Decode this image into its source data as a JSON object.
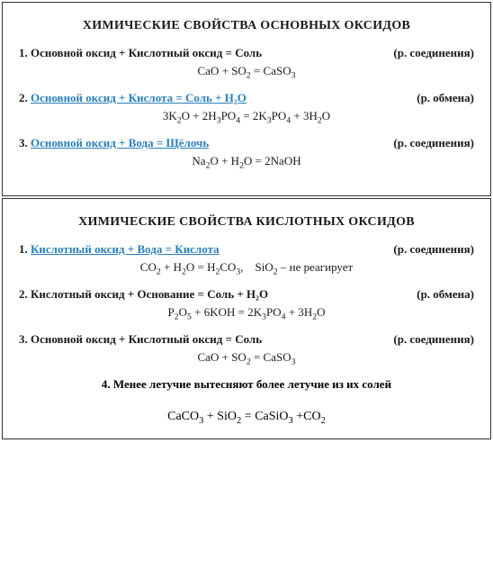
{
  "panel1": {
    "title": "ХИМИЧЕСКИЕ СВОЙСТВА ОСНОВНЫХ ОКСИДОВ",
    "items": [
      {
        "num": "1.",
        "text": "Основной оксид + Кислотный оксид = Соль",
        "link": false,
        "paren": "(р. соединения)",
        "eq_html": "CaO + SO<sub>2</sub> = CaSO<sub>3</sub>"
      },
      {
        "num": "2.",
        "text": "Основной оксид + Кислота = Соль + H₂O",
        "link": true,
        "paren": "(р. обмена)",
        "eq_html": "3K<sub>2</sub>O + 2H<sub>3</sub>PO<sub>4</sub> = 2K<sub>3</sub>PO<sub>4</sub> + 3H<sub>2</sub>O"
      },
      {
        "num": "3.",
        "text": "Основной оксид + Вода = Щёлочь",
        "link": true,
        "paren": "(р. соединения)",
        "eq_html": "Na<sub>2</sub>O + H<sub>2</sub>O = 2NaOH"
      }
    ]
  },
  "panel2": {
    "title": "ХИМИЧЕСКИЕ СВОЙСТВА КИСЛОТНЫХ ОКСИДОВ",
    "items": [
      {
        "num": "1.",
        "text": "Кислотный оксид + Вода = Кислота",
        "link": true,
        "paren": "(р. соединения)",
        "eq_html": "CO<sub>2</sub> + H<sub>2</sub>O = H<sub>2</sub>CO<sub>3</sub>,&nbsp;&nbsp;&nbsp;&nbsp;SiO<sub>2</sub> – не реагирует"
      },
      {
        "num": "2.",
        "text": "Кислотный оксид + Основание = Соль + H₂O",
        "link": false,
        "paren": "(р. обмена)",
        "eq_html": "P<sub>2</sub>O<sub>5</sub> + 6KOH = 2K<sub>3</sub>PO<sub>4</sub> + 3H<sub>2</sub>O"
      },
      {
        "num": "3.",
        "text": "Основной оксид + Кислотный оксид = Соль",
        "link": false,
        "paren": "(р. соединения)",
        "eq_html": "CaO + SO<sub>2</sub> = CaSO<sub>3</sub>"
      }
    ],
    "line4_num": "4.",
    "line4_text": "Менее летучие вытесняют более летучие из их солей",
    "final_eq_html": "CaCO<sub>3</sub> + SiO<sub>2</sub> = CaSiO<sub>3</sub> +CO<sub>2</sub>"
  },
  "colors": {
    "link": "#2a7fb8",
    "text": "#1a1a1a",
    "border": "#333333",
    "bg": "#ffffff"
  }
}
